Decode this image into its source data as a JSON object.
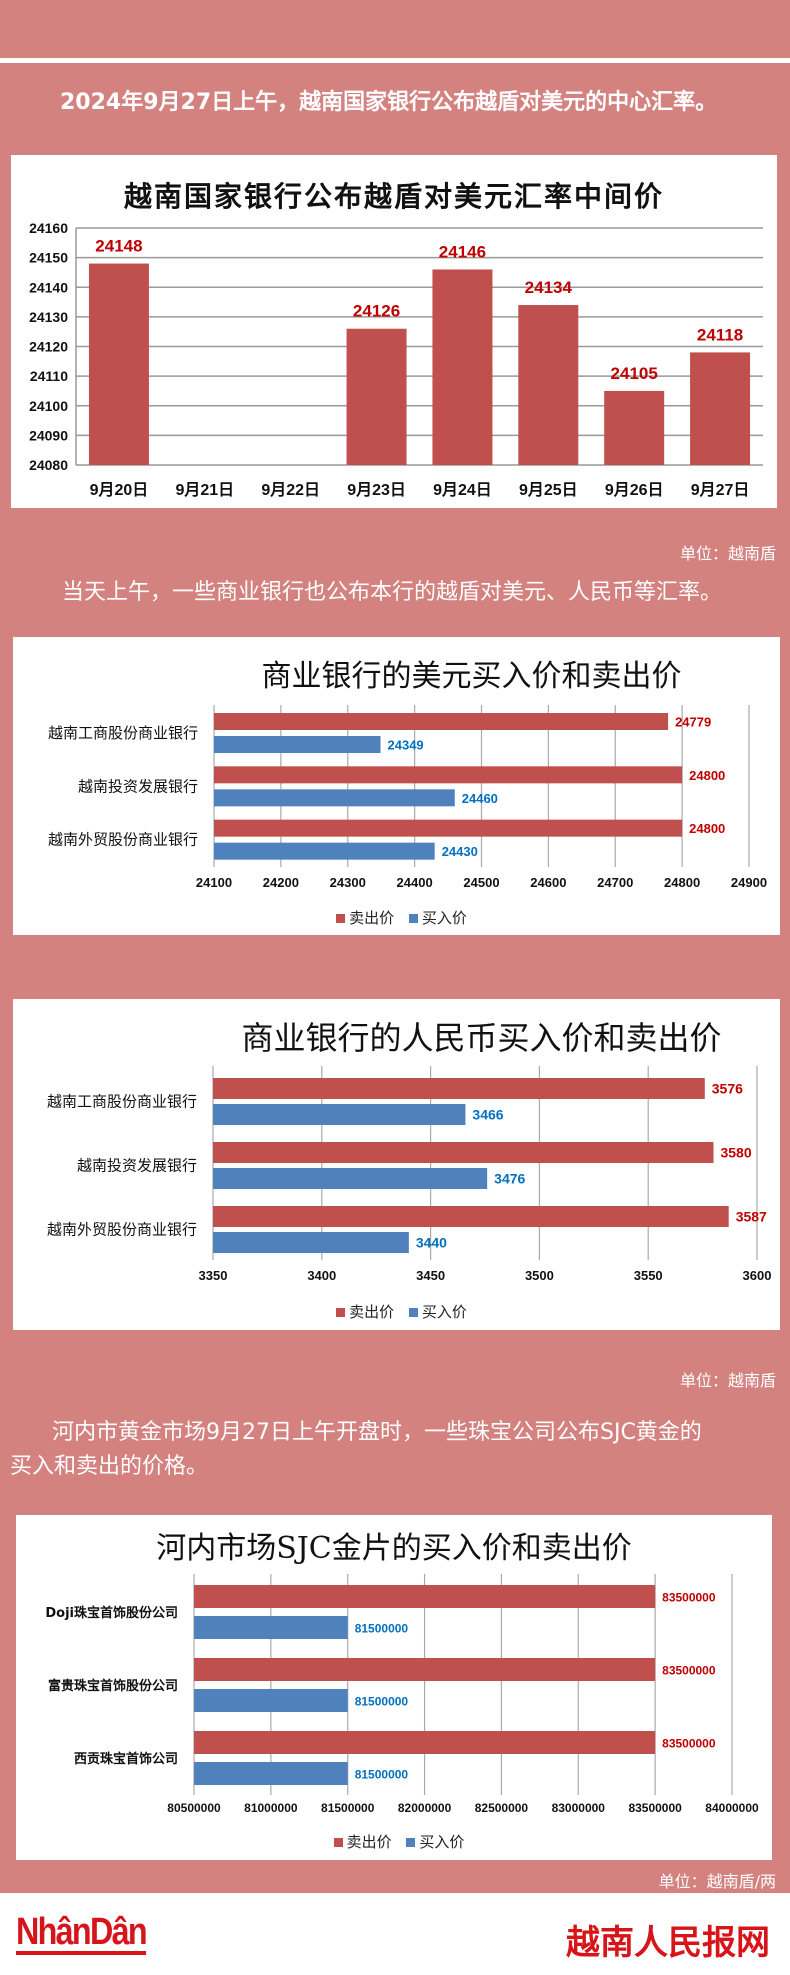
{
  "intro1": "2024年9月27日上午，越南国家银行公布越盾对美元的中心汇率。",
  "unit1": "单位：越南盾",
  "intro2": "当天上午，一些商业银行也公布本行的越盾对美元、人民币等汇率。",
  "unit2": "单位：越南盾",
  "intro3_line1": "河内市黄金市场9月27日上午开盘时，一些珠宝公司公布SJC黄金的",
  "intro3_line2": "买入和卖出的价格。",
  "unit3": "单位：越南盾/两",
  "footer": {
    "logo_left": "NhânDân",
    "logo_right": "越南人民报网"
  },
  "colors": {
    "background": "#d38280",
    "sell": "#c0504d",
    "buy": "#4f81bd",
    "sell_label": "#c00000",
    "buy_label": "#0070c0"
  },
  "chart_data": [
    {
      "type": "bar",
      "title": "越南国家银行公布越盾对美元汇率中间价",
      "categories": [
        "9月20日",
        "9月21日",
        "9月22日",
        "9月23日",
        "9月24日",
        "9月25日",
        "9月26日",
        "9月27日"
      ],
      "values": [
        24148,
        null,
        null,
        24126,
        24146,
        24134,
        24105,
        24118
      ],
      "ylim": [
        24080,
        24160
      ],
      "yticks": [
        24080,
        24090,
        24100,
        24110,
        24120,
        24130,
        24140,
        24150,
        24160
      ],
      "grid": true
    },
    {
      "type": "bar",
      "orientation": "horizontal",
      "title": "商业银行的美元买入价和卖出价",
      "categories": [
        "越南工商股份商业银行",
        "越南投资发展银行",
        "越南外贸股份商业银行"
      ],
      "series": [
        {
          "name": "卖出价",
          "values": [
            24779,
            24800,
            24800
          ]
        },
        {
          "name": "买入价",
          "values": [
            24349,
            24460,
            24430
          ]
        }
      ],
      "xlim": [
        24100,
        24900
      ],
      "xticks": [
        24100,
        24200,
        24300,
        24400,
        24500,
        24600,
        24700,
        24800,
        24900
      ],
      "legend": "bottom"
    },
    {
      "type": "bar",
      "orientation": "horizontal",
      "title": "商业银行的人民币买入价和卖出价",
      "categories": [
        "越南工商股份商业银行",
        "越南投资发展银行",
        "越南外贸股份商业银行"
      ],
      "series": [
        {
          "name": "卖出价",
          "values": [
            3576,
            3580,
            3587
          ]
        },
        {
          "name": "买入价",
          "values": [
            3466,
            3476,
            3440
          ]
        }
      ],
      "xlim": [
        3350,
        3600
      ],
      "xticks": [
        3350,
        3400,
        3450,
        3500,
        3550,
        3600
      ],
      "legend": "bottom"
    },
    {
      "type": "bar",
      "orientation": "horizontal",
      "title": "河内市场SJC金片的买入价和卖出价",
      "categories": [
        "Doji珠宝首饰股份公司",
        "富贵珠宝首饰股份公司",
        "西贡珠宝首饰公司"
      ],
      "series": [
        {
          "name": "卖出价",
          "values": [
            83500000,
            83500000,
            83500000
          ]
        },
        {
          "name": "买入价",
          "values": [
            81500000,
            81500000,
            81500000
          ]
        }
      ],
      "xlim": [
        80500000,
        84000000
      ],
      "xticks": [
        80500000,
        81000000,
        81500000,
        82000000,
        82500000,
        83000000,
        83500000,
        84000000
      ],
      "legend": "bottom"
    }
  ]
}
